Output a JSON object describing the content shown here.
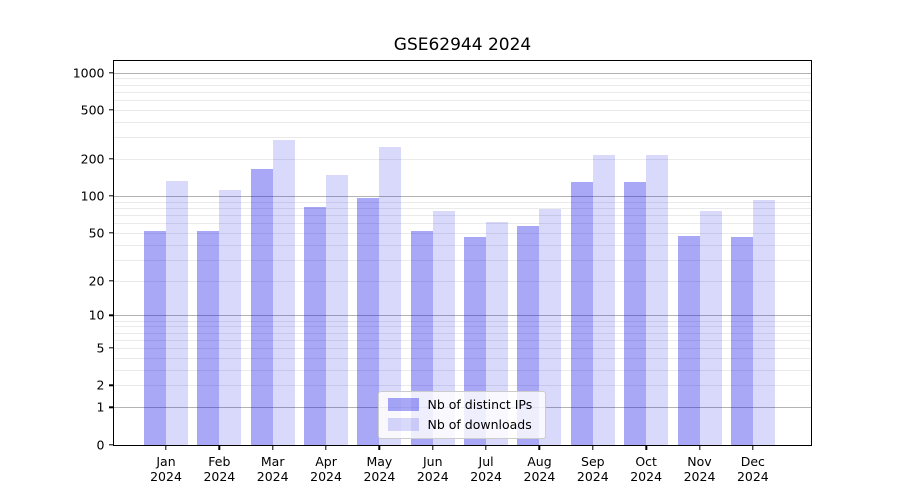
{
  "chart_data": {
    "type": "bar",
    "title": "GSE62944 2024",
    "categories": [
      "Jan",
      "Feb",
      "Mar",
      "Apr",
      "May",
      "Jun",
      "Jul",
      "Aug",
      "Sep",
      "Oct",
      "Nov",
      "Dec"
    ],
    "category_year": "2024",
    "series": [
      {
        "name": "Nb of distinct IPs",
        "color": "rgba(0,0,230,0.34)",
        "values": [
          52,
          52,
          165,
          82,
          97,
          52,
          46,
          57,
          130,
          130,
          47,
          46
        ]
      },
      {
        "name": "Nb of downloads",
        "color": "rgba(0,0,230,0.15)",
        "values": [
          132,
          111,
          285,
          147,
          248,
          76,
          61,
          79,
          215,
          215,
          75,
          93
        ]
      }
    ],
    "xlabel": "",
    "ylabel": "",
    "y_axis": {
      "scale": "log1p",
      "tick_values": [
        0,
        1,
        2,
        5,
        10,
        20,
        50,
        100,
        200,
        500,
        1000
      ],
      "major_gridline_values": [
        1,
        10,
        100,
        1000
      ],
      "minor_gridline_values": [
        2,
        3,
        4,
        5,
        6,
        7,
        8,
        9,
        20,
        30,
        40,
        50,
        60,
        70,
        80,
        90,
        200,
        300,
        400,
        500,
        600,
        700,
        800,
        900
      ],
      "ylim": [
        0,
        1250
      ]
    },
    "grid": "on",
    "legend_position": "lower center",
    "colors": {
      "axis": "#000000",
      "major_grid": "#b3b3b3",
      "minor_grid": "#eaeaea",
      "background": "#ffffff"
    }
  }
}
